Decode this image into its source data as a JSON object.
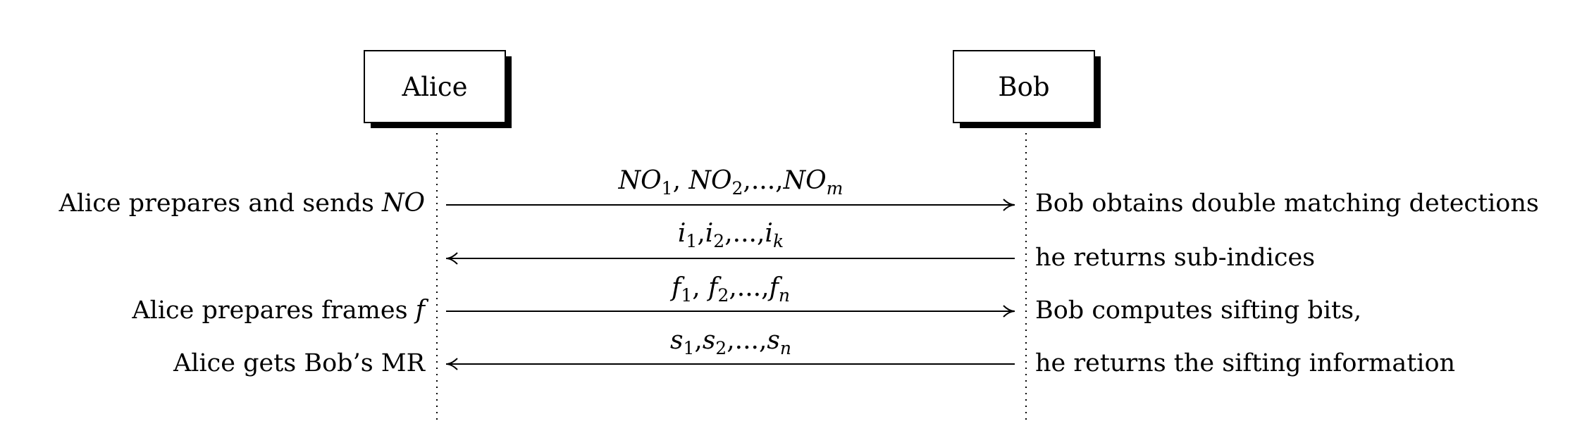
{
  "participants": {
    "alice": "Alice",
    "bob": "Bob"
  },
  "steps": [
    {
      "direction": "alice-to-bob",
      "left_note_text": "Alice prepares and sends ",
      "left_note_math": "NO",
      "message": {
        "base": "NO",
        "subs": [
          "1",
          "2",
          "m"
        ],
        "separator": ", "
      },
      "right_note": "Bob obtains double matching detections"
    },
    {
      "direction": "bob-to-alice",
      "left_note_text": "",
      "left_note_math": "",
      "message": {
        "base": "i",
        "subs": [
          "1",
          "2",
          "k"
        ],
        "separator": ","
      },
      "right_note": "he returns sub-indices"
    },
    {
      "direction": "alice-to-bob",
      "left_note_text": "Alice prepares frames ",
      "left_note_math": "f",
      "message": {
        "base": "f",
        "subs": [
          "1",
          "2",
          "n"
        ],
        "separator": ", "
      },
      "right_note": "Bob computes sifting bits,"
    },
    {
      "direction": "bob-to-alice",
      "left_note_text": "Alice gets Bob’s MR",
      "left_note_math": "",
      "message": {
        "base": "s",
        "subs": [
          "1",
          "2",
          "n"
        ],
        "separator": ","
      },
      "right_note": "he returns the sifting information"
    }
  ],
  "ellipsis": "...",
  "colors": {
    "ink": "#000000",
    "background": "#ffffff"
  }
}
